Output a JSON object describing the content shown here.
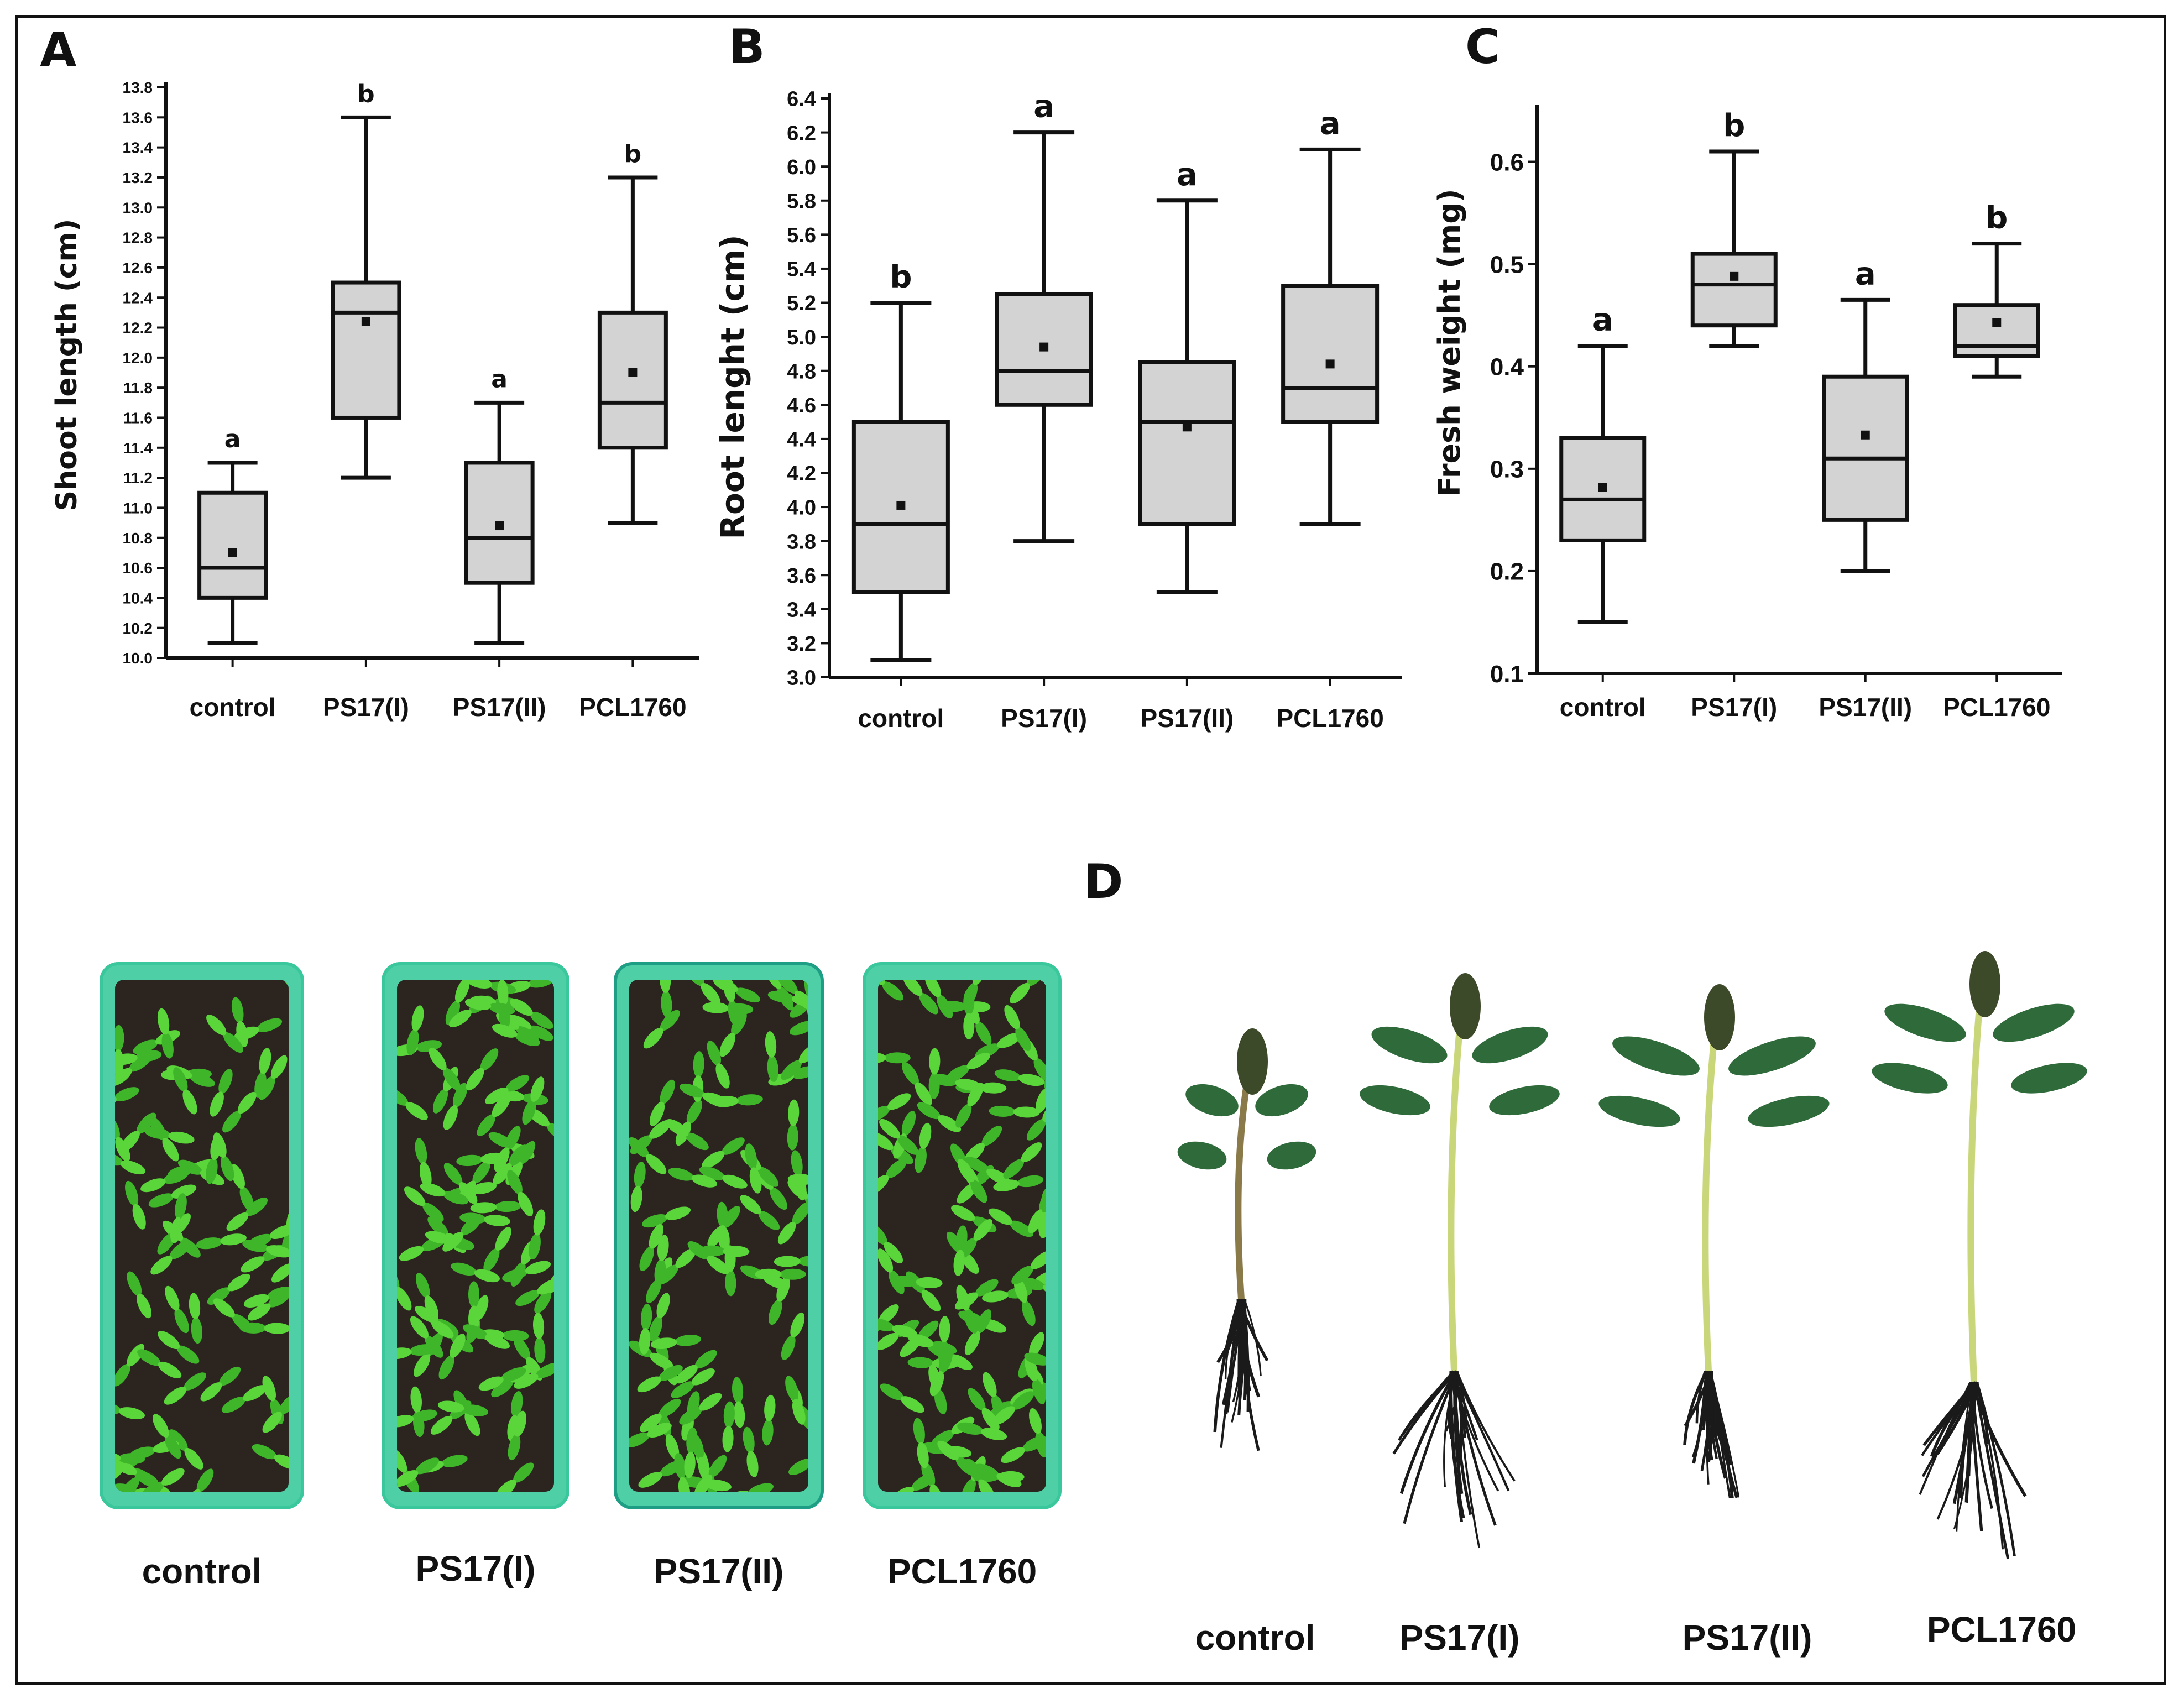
{
  "panels": {
    "a": "A",
    "b": "B",
    "c": "C",
    "d": "D"
  },
  "chart_data": [
    {
      "id": "A",
      "type": "box",
      "ylabel": "Shoot length (cm)",
      "xlabel": "",
      "categories": [
        "control",
        "PS17(I)",
        "PS17(II)",
        "PCL1760"
      ],
      "ylim": [
        10.0,
        13.8
      ],
      "yticks": [
        10.0,
        10.2,
        10.4,
        10.6,
        10.8,
        11.0,
        11.2,
        11.4,
        11.6,
        11.8,
        12.0,
        12.2,
        12.4,
        12.6,
        12.8,
        13.0,
        13.2,
        13.4,
        13.6,
        13.8
      ],
      "yticks_text": [
        "10.0",
        "10.2",
        "10.4",
        "10.6",
        "10.8",
        "11.0",
        "11.2",
        "11.4",
        "11.6",
        "11.8",
        "12.0",
        "12.2",
        "12.4",
        "12.6",
        "12.8",
        "13.0",
        "13.2",
        "13.4",
        "13.6",
        "13.8"
      ],
      "boxes": [
        {
          "min": 10.1,
          "q1": 10.4,
          "median": 10.6,
          "q3": 11.1,
          "max": 11.3,
          "mean": 10.7,
          "letter": "a"
        },
        {
          "min": 11.2,
          "q1": 11.6,
          "median": 12.3,
          "q3": 12.5,
          "max": 13.6,
          "mean": 12.24,
          "letter": "b"
        },
        {
          "min": 10.1,
          "q1": 10.5,
          "median": 10.8,
          "q3": 11.3,
          "max": 11.7,
          "mean": 10.88,
          "letter": "a"
        },
        {
          "min": 10.9,
          "q1": 11.4,
          "median": 11.7,
          "q3": 12.3,
          "max": 13.2,
          "mean": 11.9,
          "letter": "b"
        }
      ],
      "grid": false,
      "box_color": "#d3d3d3"
    },
    {
      "id": "B",
      "type": "box",
      "ylabel": "Root lenght (cm)",
      "xlabel": "",
      "categories": [
        "control",
        "PS17(I)",
        "PS17(II)",
        "PCL1760"
      ],
      "ylim": [
        3.0,
        6.4
      ],
      "yticks": [
        3.0,
        3.2,
        3.4,
        3.6,
        3.8,
        4.0,
        4.2,
        4.4,
        4.6,
        4.8,
        5.0,
        5.2,
        5.4,
        5.6,
        5.8,
        6.0,
        6.2,
        6.4
      ],
      "yticks_text": [
        "3.0",
        "3.2",
        "3.4",
        "3.6",
        "3.8",
        "4.0",
        "4.2",
        "4.4",
        "4.6",
        "4.8",
        "5.0",
        "5.2",
        "5.4",
        "5.6",
        "5.8",
        "6.0",
        "6.2",
        "6.4"
      ],
      "boxes": [
        {
          "min": 3.1,
          "q1": 3.5,
          "median": 3.9,
          "q3": 4.5,
          "max": 5.2,
          "mean": 4.01,
          "letter": "b"
        },
        {
          "min": 3.8,
          "q1": 4.6,
          "median": 4.8,
          "q3": 5.25,
          "max": 6.2,
          "mean": 4.94,
          "letter": "a"
        },
        {
          "min": 3.5,
          "q1": 3.9,
          "median": 4.5,
          "q3": 4.85,
          "max": 5.8,
          "mean": 4.47,
          "letter": "a"
        },
        {
          "min": 3.9,
          "q1": 4.5,
          "median": 4.7,
          "q3": 5.3,
          "max": 6.1,
          "mean": 4.84,
          "letter": "a"
        }
      ],
      "grid": false,
      "box_color": "#d3d3d3"
    },
    {
      "id": "C",
      "type": "box",
      "ylabel": "Fresh weight (mg)",
      "xlabel": "",
      "categories": [
        "control",
        "PS17(I)",
        "PS17(II)",
        "PCL1760"
      ],
      "ylim": [
        0.1,
        0.65
      ],
      "yticks": [
        0.1,
        0.2,
        0.3,
        0.4,
        0.5,
        0.6
      ],
      "yticks_text": [
        "0.1",
        "0.2",
        "0.3",
        "0.4",
        "0.5",
        "0.6"
      ],
      "boxes": [
        {
          "min": 0.15,
          "q1": 0.23,
          "median": 0.27,
          "q3": 0.33,
          "max": 0.42,
          "mean": 0.282,
          "letter": "a"
        },
        {
          "min": 0.42,
          "q1": 0.44,
          "median": 0.48,
          "q3": 0.51,
          "max": 0.61,
          "mean": 0.488,
          "letter": "b"
        },
        {
          "min": 0.2,
          "q1": 0.25,
          "median": 0.31,
          "q3": 0.39,
          "max": 0.465,
          "mean": 0.333,
          "letter": "a"
        },
        {
          "min": 0.39,
          "q1": 0.41,
          "median": 0.42,
          "q3": 0.46,
          "max": 0.52,
          "mean": 0.443,
          "letter": "b"
        }
      ],
      "grid": false,
      "box_color": "#d3d3d3"
    }
  ],
  "photos": {
    "trays": {
      "labels": [
        "control",
        "PS17(I)",
        "PS17(II)",
        "PCL1760"
      ],
      "tray_color": "#4fcfa6",
      "leaf_color": "#3fb52a",
      "soil_color": "#2b241f"
    },
    "seedlings": {
      "labels": [
        "control",
        "PS17(I)",
        "PS17(II)",
        "PCL1760"
      ],
      "stem_color": "#c9d67a",
      "leaf_color": "#2f6b3a",
      "root_color": "#1a1a1a"
    }
  }
}
